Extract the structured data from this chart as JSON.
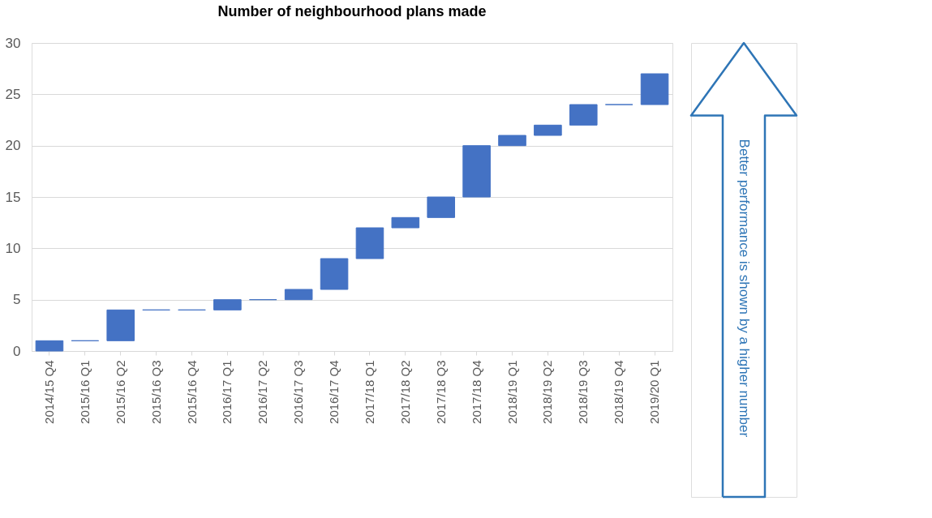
{
  "chart_data": {
    "type": "bar",
    "title": "Number of neighbourhood plans made",
    "categories": [
      "2014/15 Q4",
      "2015/16 Q1",
      "2015/16 Q2",
      "2015/16 Q3",
      "2015/16 Q4",
      "2016/17 Q1",
      "2016/17 Q2",
      "2016/17 Q3",
      "2016/17 Q4",
      "2017/18 Q1",
      "2017/18 Q2",
      "2017/18 Q3",
      "2017/18 Q4",
      "2018/19 Q1",
      "2018/19 Q2",
      "2018/19 Q3",
      "2018/19 Q4",
      "2019/20 Q1"
    ],
    "base": [
      0,
      1,
      1,
      4,
      4,
      4,
      5,
      5,
      6,
      9,
      12,
      13,
      15,
      20,
      21,
      22,
      24,
      24
    ],
    "values": [
      1,
      0,
      3,
      0,
      0,
      1,
      0,
      1,
      3,
      3,
      1,
      2,
      5,
      1,
      1,
      2,
      0,
      3
    ],
    "color": "#4472c4",
    "ylim": [
      0,
      30
    ],
    "yticks": [
      0,
      5,
      10,
      15,
      20,
      25,
      30
    ],
    "grid": "y",
    "annotations": [
      "Better performance is shown by a higher number"
    ]
  }
}
